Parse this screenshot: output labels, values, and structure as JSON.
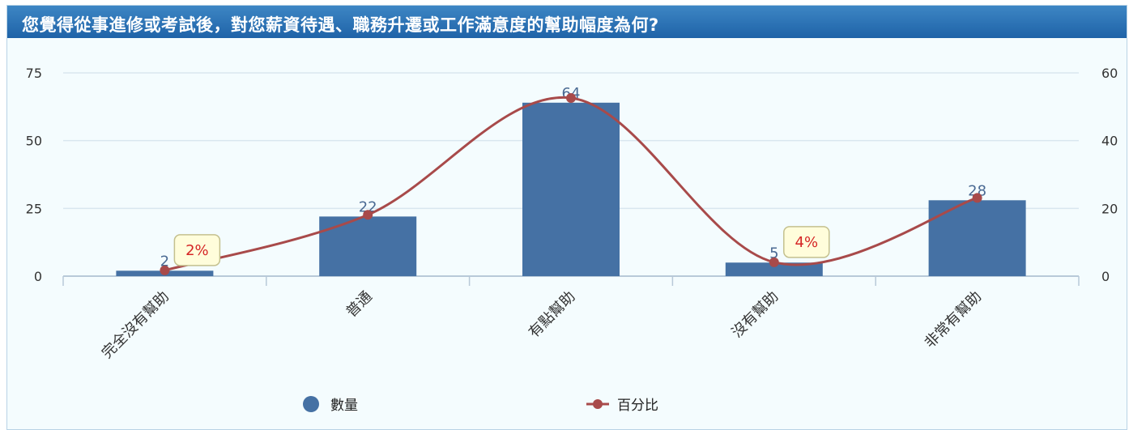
{
  "header": {
    "title": "您覺得從事進修或考試後，對您薪資待遇、職務升遷或工作滿意度的幫助幅度為何?"
  },
  "colors": {
    "bar": "#4571a4",
    "line": "#a84a4a",
    "label": "#4a6a93",
    "callout_text": "#d52525",
    "callout_bg": "#fffddb",
    "grid": "#d9e6ef",
    "axis": "#b8c9d8"
  },
  "chart_data": {
    "type": "bar",
    "title": "您覺得從事進修或考試後，對您薪資待遇、職務升遷或工作滿意度的幫助幅度為何?",
    "categories": [
      "完全沒有幫助",
      "普通",
      "有點幫助",
      "沒有幫助",
      "非常有幫助"
    ],
    "series": [
      {
        "name": "數量",
        "type": "bar",
        "axis": "left",
        "values": [
          2,
          22,
          64,
          5,
          28
        ],
        "labels": [
          "2",
          "22",
          "64",
          "5",
          "28"
        ]
      },
      {
        "name": "百分比",
        "type": "line",
        "axis": "right",
        "values": [
          1.7,
          18.1,
          52.6,
          4.1,
          23.1
        ],
        "callouts": [
          {
            "index": 0,
            "text": "2%"
          },
          {
            "index": 3,
            "text": "4%"
          }
        ]
      }
    ],
    "y_left": {
      "min": 0,
      "max": 75,
      "ticks": [
        "0",
        "25",
        "50",
        "75"
      ],
      "tick_values": [
        0,
        25,
        50,
        75
      ]
    },
    "y_right": {
      "min": 0,
      "max": 60,
      "ticks": [
        "0",
        "20",
        "40",
        "60"
      ],
      "tick_values": [
        0,
        20,
        40,
        60
      ]
    },
    "grid": true,
    "legend_position": "bottom"
  }
}
